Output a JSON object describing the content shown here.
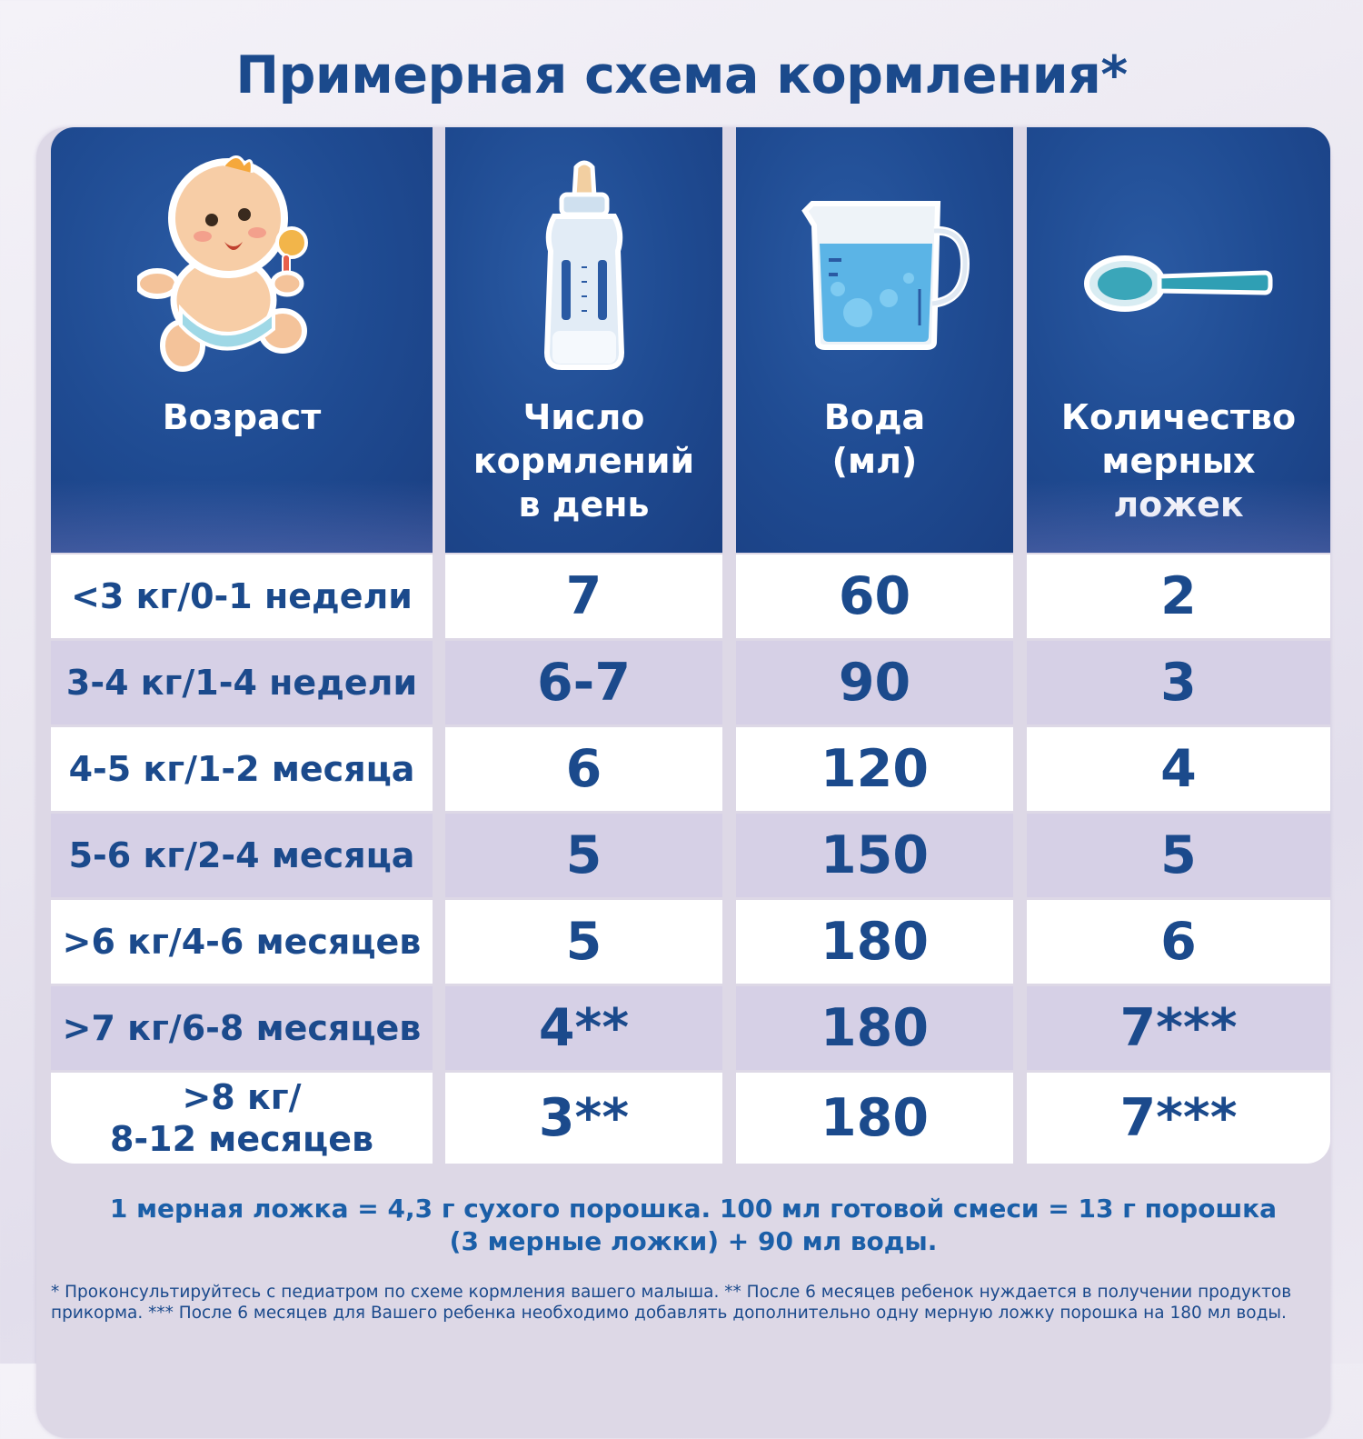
{
  "title": "Примерная схема кормления*",
  "columns": [
    {
      "label": "Возраст",
      "icon": "baby-icon"
    },
    {
      "label": "Число\nкормлений\nв день",
      "icon": "bottle-icon"
    },
    {
      "label": "Вода\n(мл)",
      "icon": "measuring-jug-icon"
    },
    {
      "label": "Количество\nмерных\nложек",
      "icon": "spoon-icon"
    }
  ],
  "rows": [
    {
      "age": "<3 кг/0-1 недели",
      "feedings": "7",
      "water": "60",
      "spoons": "2"
    },
    {
      "age": "3-4 кг/1-4 недели",
      "feedings": "6-7",
      "water": "90",
      "spoons": "3"
    },
    {
      "age": "4-5 кг/1-2 месяца",
      "feedings": "6",
      "water": "120",
      "spoons": "4"
    },
    {
      "age": "5-6 кг/2-4 месяца",
      "feedings": "5",
      "water": "150",
      "spoons": "5"
    },
    {
      "age": ">6 кг/4-6 месяцев",
      "feedings": "5",
      "water": "180",
      "spoons": "6"
    },
    {
      "age": ">7 кг/6-8 месяцев",
      "feedings": "4**",
      "water": "180",
      "spoons": "7***"
    },
    {
      "age": ">8 кг/\n8-12 месяцев",
      "feedings": "3**",
      "water": "180",
      "spoons": "7***"
    }
  ],
  "note_line1": "1 мерная ложка = 4,3 г сухого порошка. 100 мл готовой смеси = 13 г порошка",
  "note_line2": "(3 мерные ложки) + 90 мл воды.",
  "footnote": "* Проконсультируйтесь с педиатром по схеме кормления вашего малыша. ** После 6 месяцев ребенок нуждается в получении продуктов прикорма. *** После 6 месяцев для Вашего ребенка необходимо добавлять дополнительно одну мерную ложку порошка на 180 мл воды.",
  "colors": {
    "header_blue": "#1f4b92",
    "text_blue": "#1b4a8c",
    "row_lavender": "#d6d0e6",
    "row_white": "#ffffff"
  }
}
